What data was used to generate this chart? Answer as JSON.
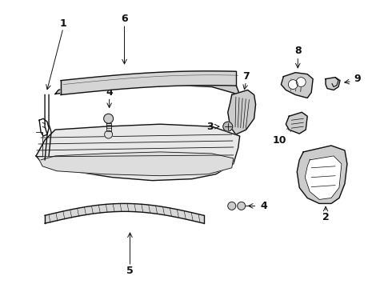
{
  "background_color": "#ffffff",
  "line_color": "#111111",
  "figsize": [
    4.9,
    3.6
  ],
  "dpi": 100,
  "label_fontsize": 9
}
